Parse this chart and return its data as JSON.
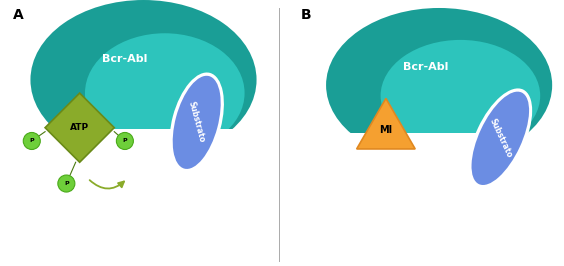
{
  "panel_A_label": "A",
  "panel_B_label": "B",
  "bcr_abl_color_dark": "#1a9e96",
  "bcr_abl_color_light": "#2dc4bc",
  "bcr_abl_text": "Bcr-Abl",
  "bcr_abl_text_color": "white",
  "substrate_color": "#6b8de3",
  "substrate_text": "Substrato",
  "substrate_text_color": "white",
  "atp_color": "#8aab2a",
  "atp_edge_color": "#6a8a18",
  "atp_text": "ATP",
  "atp_text_color": "black",
  "phosphate_color": "#6ecf3a",
  "phosphate_edge_color": "#4aaa1a",
  "mi_color": "#f5a030",
  "mi_edge_color": "#e08820",
  "mi_text": "MI",
  "mi_text_color": "black",
  "arrow_color": "#8aab2a",
  "divider_color": "#aaaaaa",
  "background_color": "white"
}
